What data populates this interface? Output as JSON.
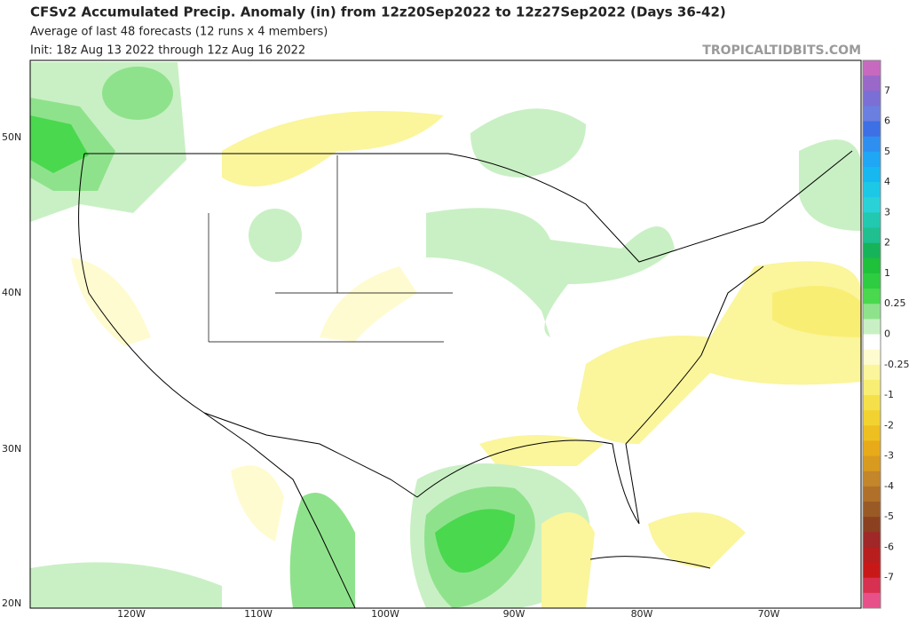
{
  "header": {
    "title": "CFSv2 Accumulated Precip. Anomaly (in) from 12z20Sep2022 to 12z27Sep2022 (Days 36-42)",
    "subtitle": "Average of last 48 forecasts (12 runs x 4 members)",
    "init": "Init: 18z Aug 13 2022 through 12z Aug 16 2022",
    "watermark": "TROPICALTIDBITS.COM"
  },
  "map": {
    "lat_labels": [
      "50N",
      "40N",
      "30N",
      "20N"
    ],
    "lon_labels": [
      "120W",
      "110W",
      "100W",
      "90W",
      "80W",
      "70W"
    ]
  },
  "colorbar": {
    "labels": [
      7,
      6,
      5,
      4,
      3,
      2,
      1,
      0.25,
      0,
      -0.25,
      -1,
      -2,
      -3,
      -4,
      -5,
      -6,
      -7
    ],
    "colors": [
      "#c869c0",
      "#9a68c9",
      "#7b6fd6",
      "#6b7fe0",
      "#3d6fe5",
      "#2f8ff0",
      "#1fa6f5",
      "#17b8f0",
      "#1cc8e6",
      "#2ad2d8",
      "#22c9b0",
      "#1fbf90",
      "#17b35a",
      "#1fc03a",
      "#2ecc40",
      "#4ad84e",
      "#8fe28c",
      "#c9f0c4",
      "#ffffff",
      "#fffbd0",
      "#fbf59c",
      "#f8ee74",
      "#f5e04a",
      "#f2d230",
      "#eebf20",
      "#e8aa18",
      "#d99a20",
      "#c4862a",
      "#b0702a",
      "#9a5a26",
      "#8b4020",
      "#a02828",
      "#b81e1e",
      "#c81818",
      "#d83050",
      "#e8508a"
    ]
  }
}
